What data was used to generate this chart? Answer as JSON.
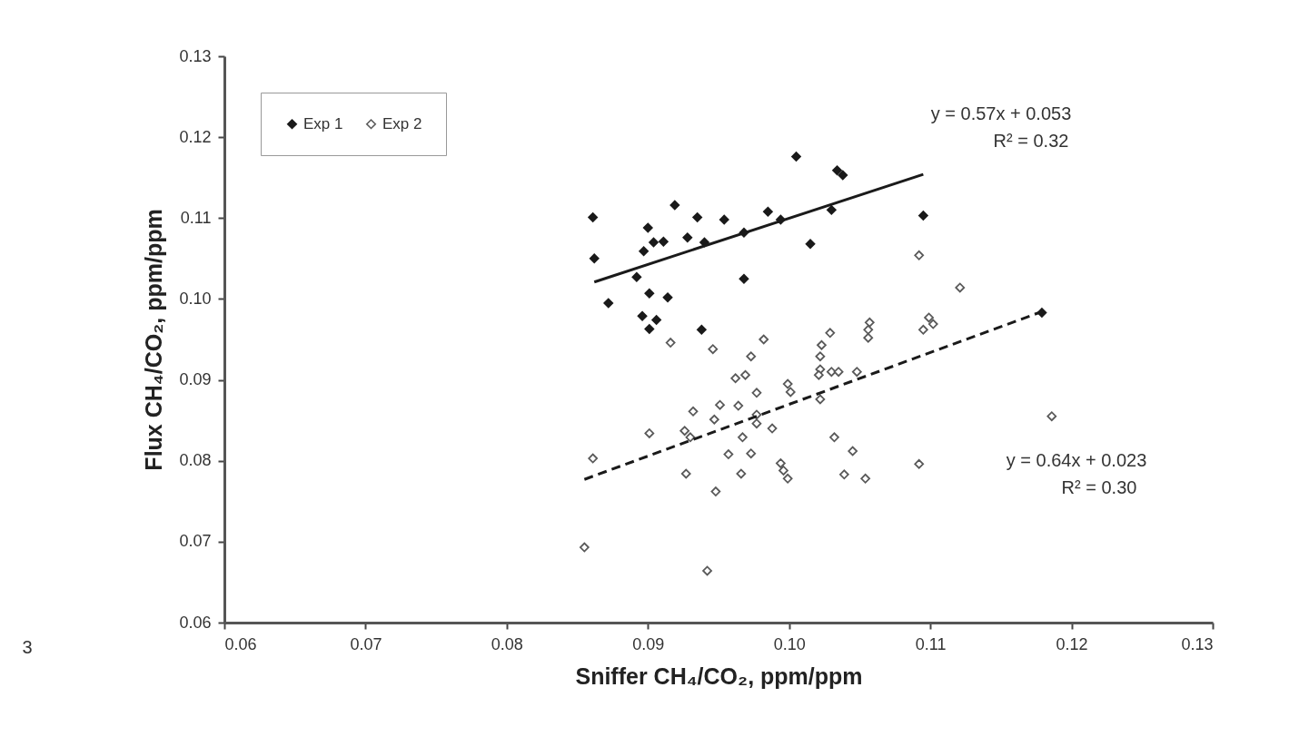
{
  "chart_data": {
    "type": "scatter",
    "xlabel": "Sniffer CH₄/CO₂, ppm/ppm",
    "ylabel": "Flux CH₄/CO₂, ppm/ppm",
    "xlim": [
      0.06,
      0.13
    ],
    "ylim": [
      0.06,
      0.13
    ],
    "xticks": [
      0.06,
      0.07,
      0.08,
      0.09,
      {
        "value": 0.1,
        "label": "0.10"
      },
      0.11,
      0.12,
      0.13
    ],
    "yticks": [
      0.06,
      0.07,
      0.08,
      0.09,
      {
        "value": 0.1,
        "label": "0.10"
      },
      0.11,
      0.12,
      0.13
    ],
    "grid": false,
    "legend": "top left",
    "marker": "diamond",
    "annotations": [
      "y = 0.57x + 0.053",
      "R² = 0.32",
      "y = 0.64x + 0.023",
      "R² = 0.30",
      "3"
    ],
    "series": [
      {
        "name": "Exp 1",
        "color": "#1a1a1a",
        "x": [
          0.0861,
          0.0919,
          0.0935,
          0.0954,
          0.0985,
          0.1034,
          0.1038,
          0.09,
          0.0904,
          0.0911,
          0.0928,
          0.094,
          0.0968,
          0.0994,
          0.103,
          0.0897,
          0.0862,
          0.0892,
          0.1015,
          0.0968,
          0.0872,
          0.0901,
          0.0914,
          0.0896,
          0.0906,
          0.0901,
          0.0938,
          0.1005,
          0.1095,
          0.1179
        ],
        "values": [
          0.1101,
          0.1116,
          0.1101,
          0.1098,
          0.1108,
          0.1159,
          0.1153,
          0.1088,
          0.107,
          0.1071,
          0.1076,
          0.107,
          0.1082,
          0.1098,
          0.111,
          0.1059,
          0.105,
          0.1027,
          0.1068,
          0.1025,
          0.0995,
          0.1007,
          0.1002,
          0.0979,
          0.0974,
          0.0963,
          0.0962,
          0.1176,
          0.1103,
          0.0983
        ]
      },
      {
        "name": "Exp 2",
        "color": "#595959",
        "x": [
          0.0916,
          0.0946,
          0.0982,
          0.0973,
          0.0962,
          0.0969,
          0.1029,
          0.1023,
          0.1022,
          0.1022,
          0.1057,
          0.1056,
          0.1056,
          0.1021,
          0.103,
          0.1035,
          0.1048,
          0.0999,
          0.1001,
          0.0977,
          0.0932,
          0.0951,
          0.0964,
          0.0947,
          0.0977,
          0.0977,
          0.0988,
          0.0901,
          0.0926,
          0.093,
          0.0967,
          0.0957,
          0.0973,
          0.1022,
          0.1032,
          0.1045,
          0.0861,
          0.0927,
          0.0966,
          0.0994,
          0.0996,
          0.0999,
          0.1039,
          0.1054,
          0.0948,
          0.0855,
          0.0942,
          0.1092,
          0.1121,
          0.1099,
          0.1095,
          0.1102,
          0.1186,
          0.1092
        ],
        "values": [
          0.0946,
          0.0938,
          0.095,
          0.0929,
          0.0902,
          0.0906,
          0.0958,
          0.0943,
          0.0929,
          0.0913,
          0.0971,
          0.0962,
          0.0952,
          0.0906,
          0.091,
          0.091,
          0.091,
          0.0895,
          0.0885,
          0.0884,
          0.0861,
          0.0869,
          0.0868,
          0.0851,
          0.0857,
          0.0846,
          0.084,
          0.0834,
          0.0837,
          0.0829,
          0.0829,
          0.0808,
          0.0809,
          0.0876,
          0.0829,
          0.0812,
          0.0803,
          0.0784,
          0.0784,
          0.0797,
          0.0788,
          0.0778,
          0.0783,
          0.0778,
          0.0762,
          0.0693,
          0.0664,
          0.1054,
          0.1014,
          0.0977,
          0.0962,
          0.0969,
          0.0855,
          0.0796
        ]
      },
      {
        "type": "line",
        "marker": "none",
        "color": "#1a1a1a",
        "line_style": "solid",
        "x": [
          0.0862,
          0.1095
        ],
        "values": [
          0.1021,
          0.1154
        ]
      },
      {
        "type": "line",
        "marker": "none",
        "color": "#1a1a1a",
        "line_style": "dashed",
        "x": [
          0.0855,
          0.118
        ],
        "values": [
          0.0777,
          0.0985
        ]
      }
    ]
  }
}
